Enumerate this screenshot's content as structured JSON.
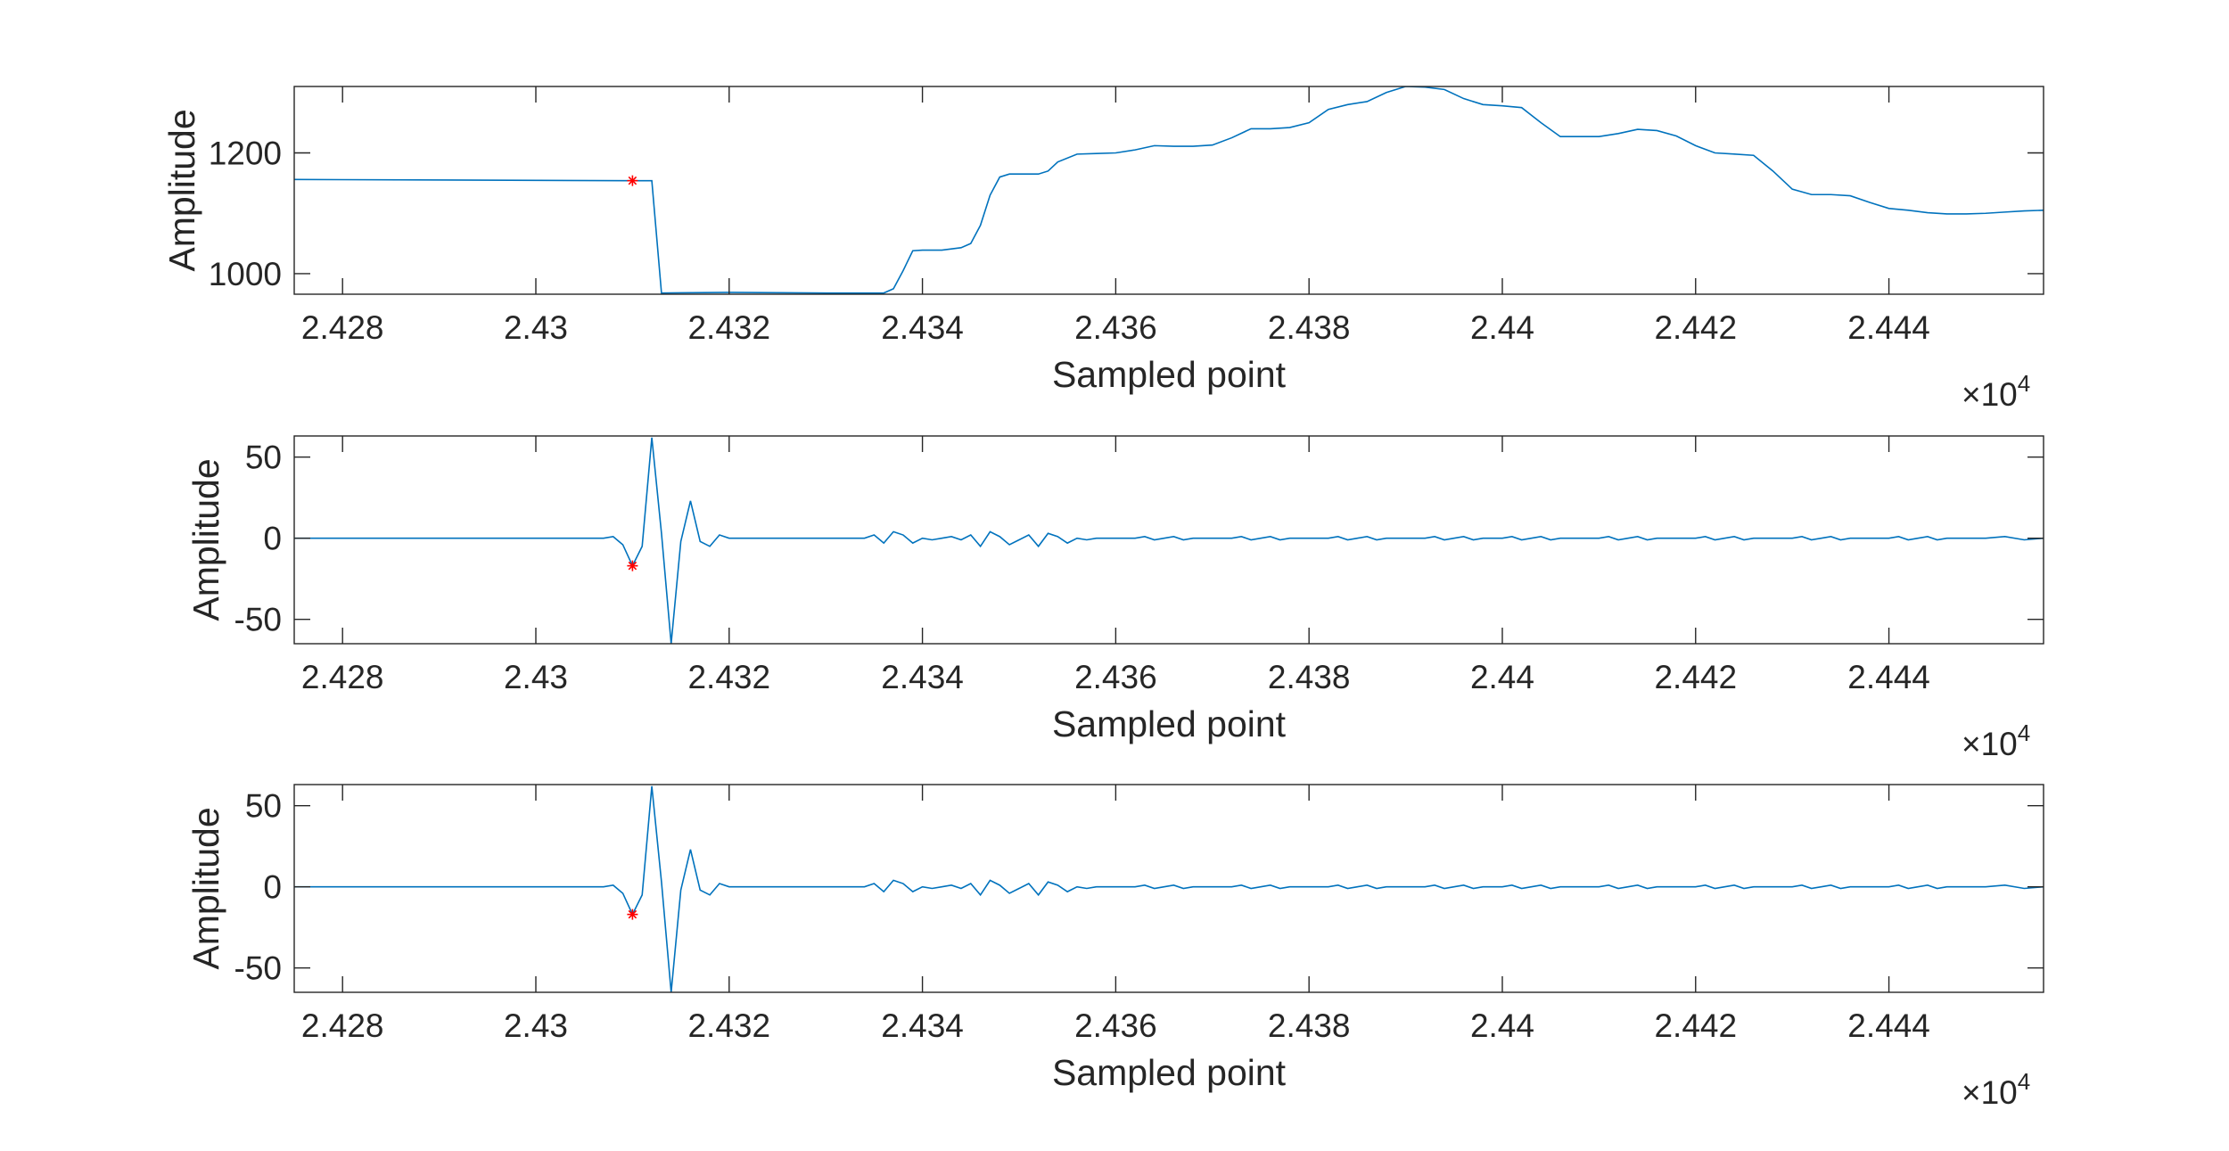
{
  "chart_data": [
    {
      "type": "line",
      "xlabel": "Sampled point",
      "ylabel": "Amplitude",
      "x_exponent_base": "×10",
      "x_exponent_power": "4",
      "xlim": [
        24275,
        24456
      ],
      "ylim": [
        966,
        1310
      ],
      "xticks": [
        24280,
        24300,
        24320,
        24340,
        24360,
        24380,
        24400,
        24420,
        24440
      ],
      "xtick_labels": [
        "2.428",
        "2.43",
        "2.432",
        "2.434",
        "2.436",
        "2.438",
        "2.44",
        "2.442",
        "2.444"
      ],
      "yticks": [
        1000,
        1200
      ],
      "ytick_labels": [
        "1000",
        "1200"
      ],
      "grid": false,
      "series": [
        {
          "color": "#0072BD",
          "x": [
            24275,
            24310,
            24312,
            24313,
            24320,
            24330,
            24336,
            24337,
            24338,
            24339,
            24340,
            24342,
            24344,
            24345,
            24346,
            24347,
            24348,
            24349,
            24350,
            24352,
            24353,
            24354,
            24356,
            24358,
            24360,
            24362,
            24364,
            24366,
            24368,
            24370,
            24372,
            24374,
            24376,
            24378,
            24380,
            24382,
            24384,
            24386,
            24388,
            24390,
            24392,
            24394,
            24396,
            24398,
            24400,
            24402,
            24404,
            24406,
            24408,
            24410,
            24412,
            24414,
            24416,
            24418,
            24420,
            24422,
            24424,
            24426,
            24428,
            24430,
            24432,
            24434,
            24436,
            24438,
            24440,
            24442,
            24444,
            24446,
            24448,
            24450,
            24452,
            24454,
            24456
          ],
          "y": [
            1156,
            1154,
            1154,
            968,
            969,
            968,
            968,
            975,
            1005,
            1038,
            1039,
            1039,
            1043,
            1050,
            1080,
            1130,
            1160,
            1165,
            1165,
            1165,
            1170,
            1185,
            1198,
            1199,
            1200,
            1205,
            1212,
            1211,
            1211,
            1213,
            1225,
            1240,
            1240,
            1242,
            1250,
            1272,
            1280,
            1285,
            1300,
            1310,
            1309,
            1305,
            1290,
            1280,
            1278,
            1275,
            1250,
            1227,
            1227,
            1227,
            1232,
            1239,
            1237,
            1228,
            1212,
            1200,
            1198,
            1196,
            1170,
            1140,
            1131,
            1131,
            1129,
            1118,
            1108,
            1105,
            1101,
            1099,
            1099,
            1100,
            1102,
            1104,
            1105
          ]
        }
      ],
      "markers": [
        {
          "x": 24310,
          "y": 1154,
          "color": "#FF0000",
          "symbol": "*"
        }
      ]
    },
    {
      "type": "line",
      "xlabel": "Sampled point",
      "ylabel": "Amplitude",
      "x_exponent_base": "×10",
      "x_exponent_power": "4",
      "xlim": [
        24275,
        24456
      ],
      "ylim": [
        -65,
        63
      ],
      "xticks": [
        24280,
        24300,
        24320,
        24340,
        24360,
        24380,
        24400,
        24420,
        24440
      ],
      "xtick_labels": [
        "2.428",
        "2.43",
        "2.432",
        "2.434",
        "2.436",
        "2.438",
        "2.44",
        "2.442",
        "2.444"
      ],
      "yticks": [
        -50,
        0,
        50
      ],
      "ytick_labels": [
        "-50",
        "0",
        "50"
      ],
      "grid": false,
      "series": [
        {
          "color": "#0072BD",
          "x": [
            24275,
            24307,
            24308,
            24309,
            24310,
            24311,
            24312,
            24313,
            24314,
            24315,
            24316,
            24317,
            24318,
            24319,
            24320,
            24334,
            24335,
            24336,
            24337,
            24338,
            24339,
            24340,
            24341,
            24342,
            24343,
            24344,
            24345,
            24346,
            24347,
            24348,
            24349,
            24350,
            24351,
            24352,
            24353,
            24354,
            24355,
            24356,
            24357,
            24358,
            24362,
            24363,
            24364,
            24365,
            24366,
            24367,
            24368,
            24372,
            24373,
            24374,
            24375,
            24376,
            24377,
            24378,
            24382,
            24383,
            24384,
            24385,
            24386,
            24387,
            24388,
            24392,
            24393,
            24394,
            24395,
            24396,
            24397,
            24398,
            24400,
            24401,
            24402,
            24403,
            24404,
            24405,
            24406,
            24410,
            24411,
            24412,
            24413,
            24414,
            24415,
            24416,
            24420,
            24421,
            24422,
            24423,
            24424,
            24425,
            24426,
            24430,
            24431,
            24432,
            24433,
            24434,
            24435,
            24436,
            24440,
            24441,
            24442,
            24443,
            24444,
            24445,
            24446,
            24450,
            24452,
            24454,
            24456
          ],
          "y": [
            0,
            0,
            1,
            -4,
            -17,
            -5,
            62,
            3,
            -65,
            -2,
            23,
            -2,
            -5,
            2,
            0,
            0,
            2,
            -3,
            4,
            2,
            -3,
            0,
            -1,
            0,
            1,
            -1,
            2,
            -5,
            4,
            1,
            -4,
            -1,
            2,
            -5,
            3,
            1,
            -3,
            0,
            -1,
            0,
            0,
            1,
            -1,
            0,
            1,
            -1,
            0,
            0,
            1,
            -1,
            0,
            1,
            -1,
            0,
            0,
            1,
            -1,
            0,
            1,
            -1,
            0,
            0,
            1,
            -1,
            0,
            1,
            -1,
            0,
            0,
            1,
            -1,
            0,
            1,
            -1,
            0,
            0,
            1,
            -1,
            0,
            1,
            -1,
            0,
            0,
            1,
            -1,
            0,
            1,
            -1,
            0,
            0,
            1,
            -1,
            0,
            1,
            -1,
            0,
            0,
            1,
            -1,
            0,
            1,
            -1,
            0,
            0,
            1,
            -1,
            0
          ],
          "markers_note": ""
        }
      ],
      "markers": [
        {
          "x": 24310,
          "y": -17,
          "color": "#FF0000",
          "symbol": "*"
        }
      ]
    },
    {
      "type": "line",
      "xlabel": "Sampled point",
      "ylabel": "Amplitude",
      "x_exponent_base": "×10",
      "x_exponent_power": "4",
      "xlim": [
        24275,
        24456
      ],
      "ylim": [
        -65,
        63
      ],
      "xticks": [
        24280,
        24300,
        24320,
        24340,
        24360,
        24380,
        24400,
        24420,
        24440
      ],
      "xtick_labels": [
        "2.428",
        "2.43",
        "2.432",
        "2.434",
        "2.436",
        "2.438",
        "2.44",
        "2.442",
        "2.444"
      ],
      "yticks": [
        -50,
        0,
        50
      ],
      "ytick_labels": [
        "-50",
        "0",
        "50"
      ],
      "grid": false,
      "series": [
        {
          "color": "#0072BD",
          "x": [
            24275,
            24307,
            24308,
            24309,
            24310,
            24311,
            24312,
            24313,
            24314,
            24315,
            24316,
            24317,
            24318,
            24319,
            24320,
            24334,
            24335,
            24336,
            24337,
            24338,
            24339,
            24340,
            24341,
            24342,
            24343,
            24344,
            24345,
            24346,
            24347,
            24348,
            24349,
            24350,
            24351,
            24352,
            24353,
            24354,
            24355,
            24356,
            24357,
            24358,
            24362,
            24363,
            24364,
            24365,
            24366,
            24367,
            24368,
            24372,
            24373,
            24374,
            24375,
            24376,
            24377,
            24378,
            24382,
            24383,
            24384,
            24385,
            24386,
            24387,
            24388,
            24392,
            24393,
            24394,
            24395,
            24396,
            24397,
            24398,
            24400,
            24401,
            24402,
            24403,
            24404,
            24405,
            24406,
            24410,
            24411,
            24412,
            24413,
            24414,
            24415,
            24416,
            24420,
            24421,
            24422,
            24423,
            24424,
            24425,
            24426,
            24430,
            24431,
            24432,
            24433,
            24434,
            24435,
            24436,
            24440,
            24441,
            24442,
            24443,
            24444,
            24445,
            24446,
            24450,
            24452,
            24454,
            24456
          ],
          "y": [
            0,
            0,
            1,
            -4,
            -17,
            -5,
            62,
            3,
            -65,
            -2,
            23,
            -2,
            -5,
            2,
            0,
            0,
            2,
            -3,
            4,
            2,
            -3,
            0,
            -1,
            0,
            1,
            -1,
            2,
            -5,
            4,
            1,
            -4,
            -1,
            2,
            -5,
            3,
            1,
            -3,
            0,
            -1,
            0,
            0,
            1,
            -1,
            0,
            1,
            -1,
            0,
            0,
            1,
            -1,
            0,
            1,
            -1,
            0,
            0,
            1,
            -1,
            0,
            1,
            -1,
            0,
            0,
            1,
            -1,
            0,
            1,
            -1,
            0,
            0,
            1,
            -1,
            0,
            1,
            -1,
            0,
            0,
            1,
            -1,
            0,
            1,
            -1,
            0,
            0,
            1,
            -1,
            0,
            1,
            -1,
            0,
            0,
            1,
            -1,
            0,
            1,
            -1,
            0,
            0,
            1,
            -1,
            0,
            1,
            -1,
            0,
            0,
            1,
            -1,
            0
          ]
        }
      ],
      "markers": [
        {
          "x": 24310,
          "y": -17,
          "color": "#FF0000",
          "symbol": "*"
        }
      ]
    }
  ]
}
